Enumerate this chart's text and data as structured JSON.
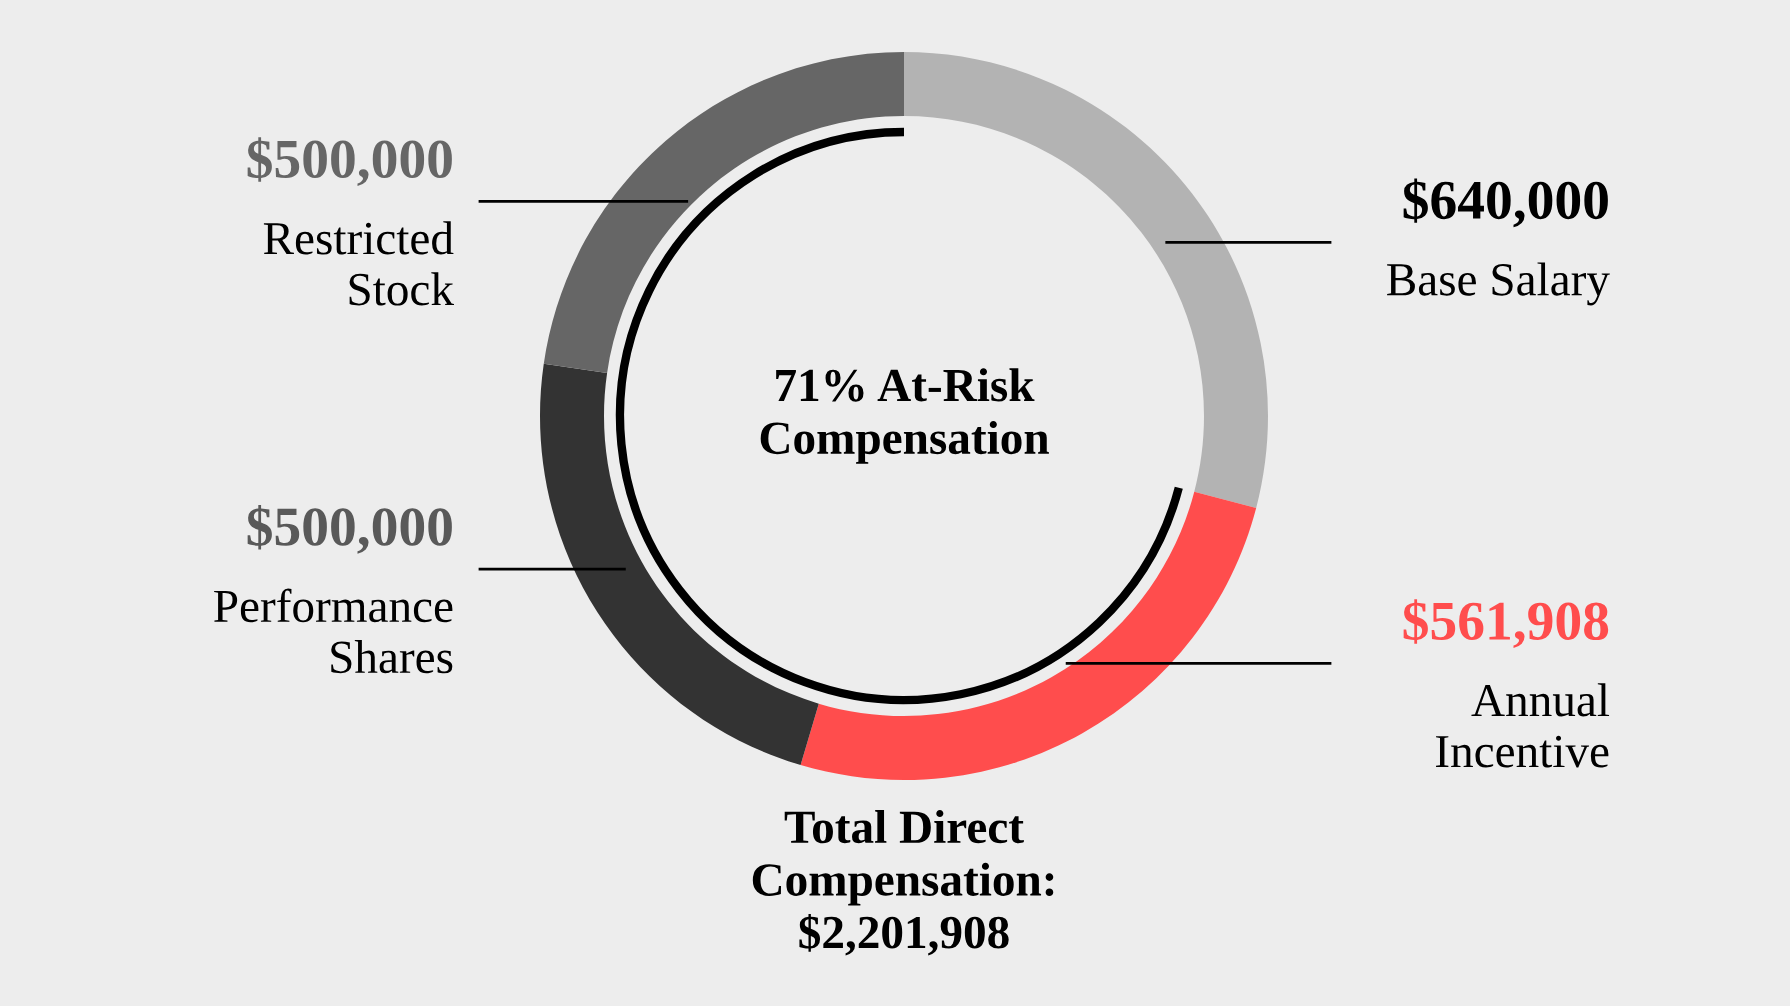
{
  "chart_data": {
    "type": "donut",
    "categories": [
      "Base Salary",
      "Annual\nIncentive",
      "Performance\nShares",
      "Restricted\nStock"
    ],
    "values": [
      640000,
      561908,
      500000,
      500000
    ],
    "colors": [
      "#b3b3b3",
      "#ff4d4d",
      "#333333",
      "#666666"
    ],
    "value_labels": [
      "$640,000",
      "$561,908",
      "$500,000",
      "$500,000"
    ],
    "annotations": [
      "71% At-Risk\nCompensation",
      "Total Direct\nCompensation:\n$2,201,908"
    ]
  }
}
